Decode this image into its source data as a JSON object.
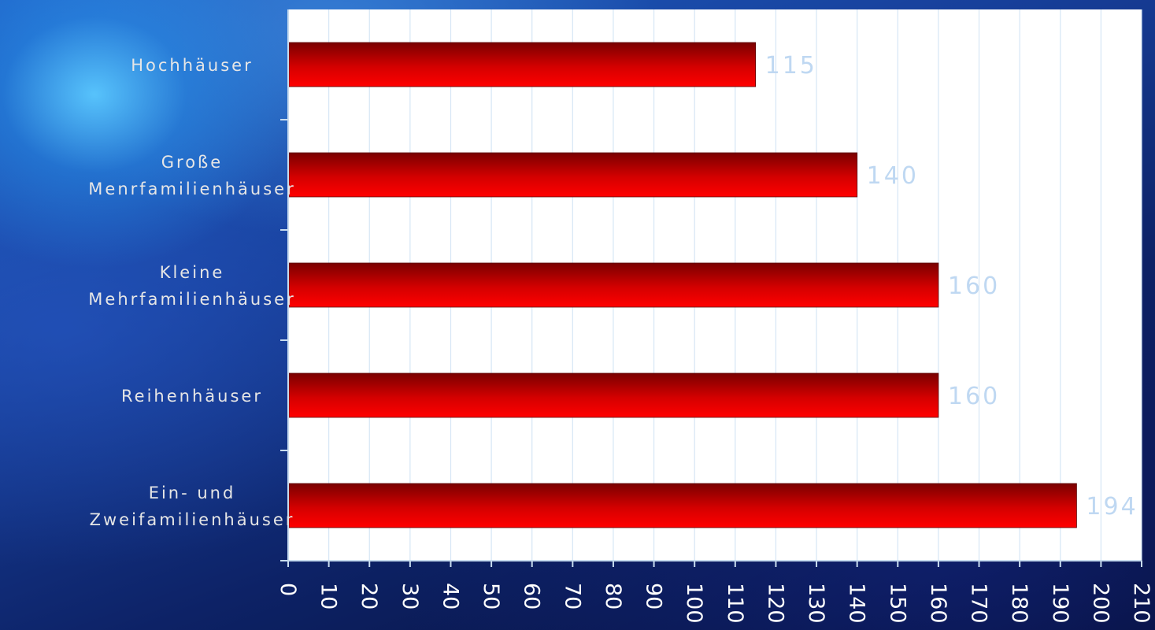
{
  "chart_data": {
    "type": "bar",
    "orientation": "horizontal",
    "categories": [
      [
        "Hochhäuser"
      ],
      [
        "Große",
        "Menrfamilienhäuser"
      ],
      [
        "Kleine",
        "Mehrfamilienhäuser"
      ],
      [
        "Reihenhäuser"
      ],
      [
        "Ein- und",
        "Zweifamilienhäuser"
      ]
    ],
    "values": [
      115,
      140,
      160,
      160,
      194
    ],
    "data_labels": [
      "115",
      "140",
      "160",
      "160",
      "194"
    ],
    "xlim": [
      0,
      210
    ],
    "ticks": [
      0,
      10,
      20,
      30,
      40,
      50,
      60,
      70,
      80,
      90,
      100,
      110,
      120,
      130,
      140,
      150,
      160,
      170,
      180,
      190,
      200,
      210
    ],
    "tick_labels": [
      "0",
      "10",
      "20",
      "30",
      "40",
      "50",
      "60",
      "70",
      "80",
      "90",
      "100",
      "110",
      "120",
      "130",
      "140",
      "150",
      "160",
      "170",
      "180",
      "190",
      "200",
      "210"
    ],
    "tick_label_rotation": "90° clockwise",
    "title": "",
    "xlabel": "",
    "ylabel": "",
    "grid": "vertical",
    "legend": "none",
    "plot_background": "#ffffff",
    "grid_color": "#d6e6f5",
    "bar_color_top": "#7a0000",
    "bar_color_bottom": "#ff0000",
    "data_label_color": "#bfd8f2"
  }
}
